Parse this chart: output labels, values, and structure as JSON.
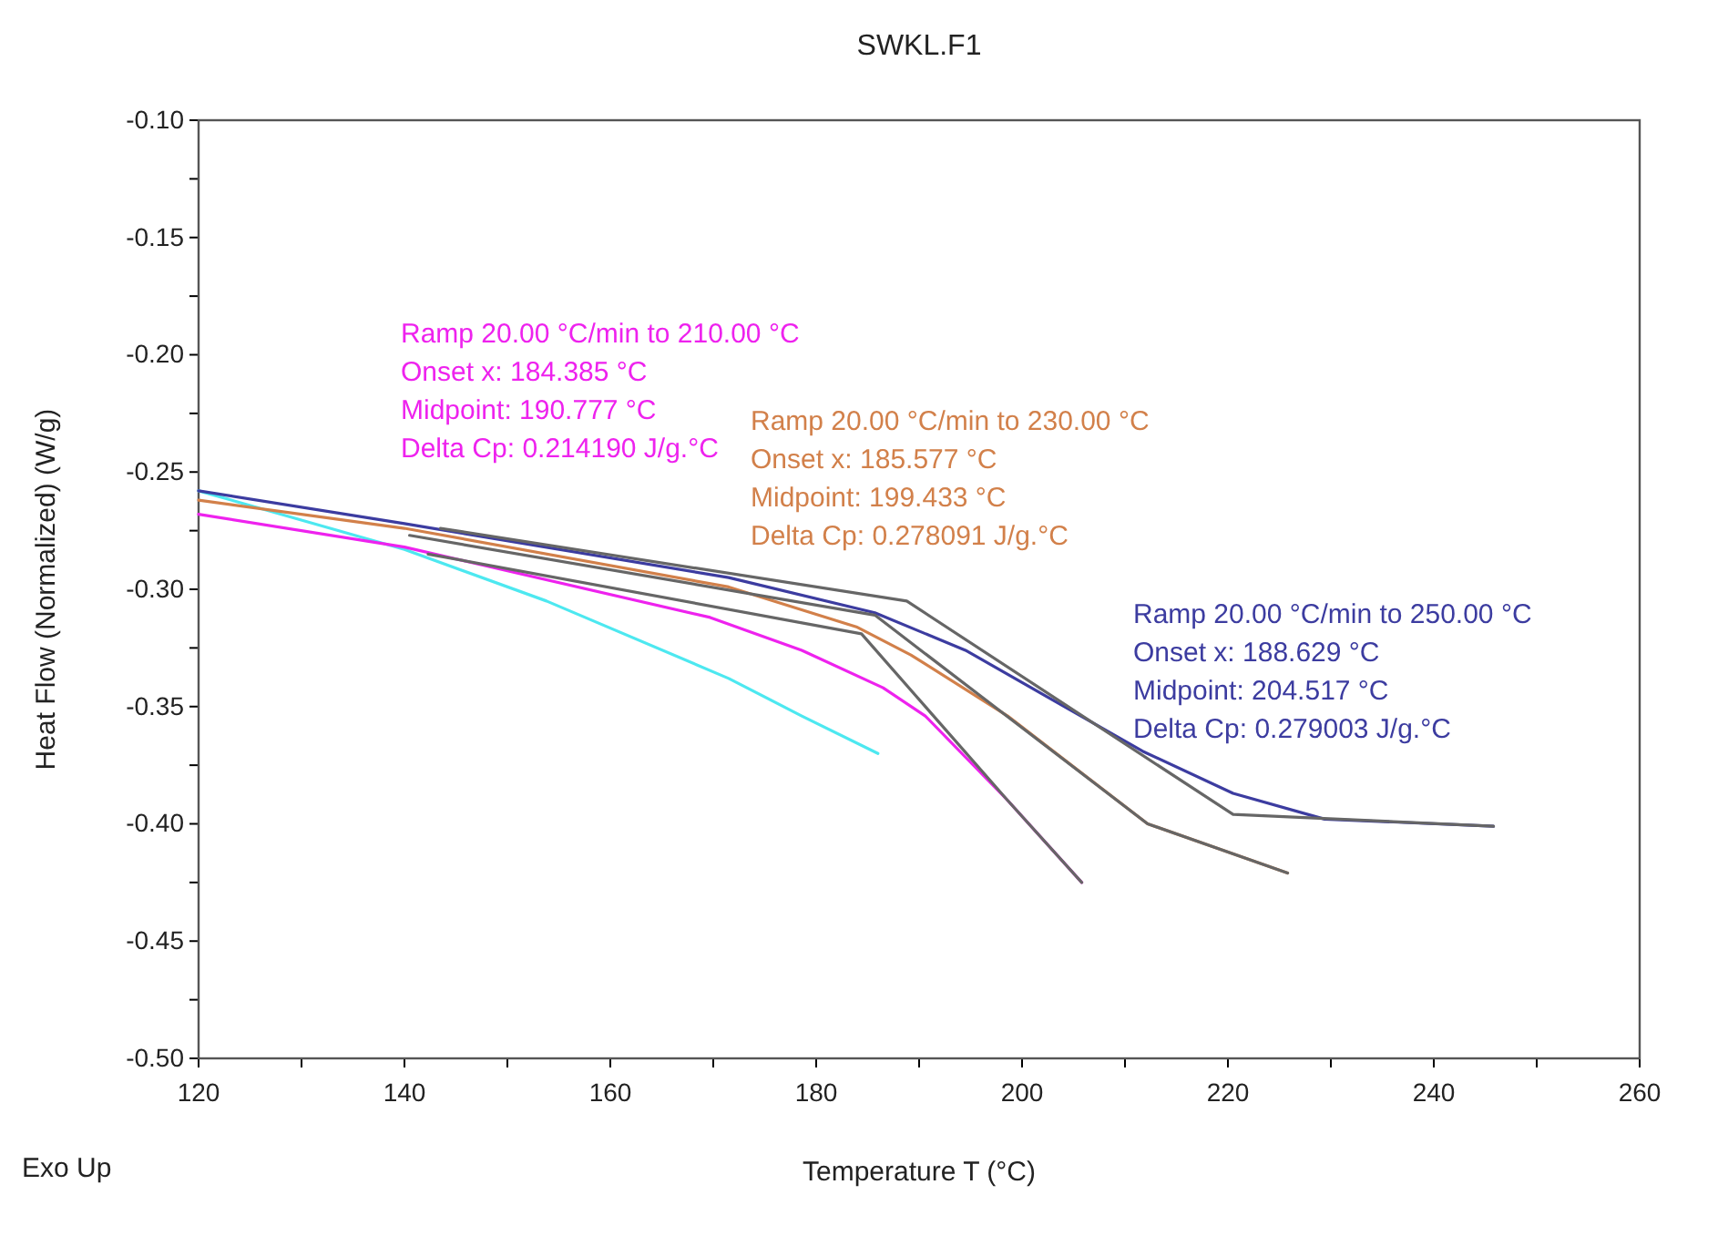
{
  "chart_data": {
    "type": "line",
    "title": "SWKL.F1",
    "xlabel": "Temperature T (°C)",
    "ylabel": "Heat Flow (Normalized) (W/g)",
    "xlim": [
      120,
      260
    ],
    "xticks": [
      120,
      {
        "value": 130,
        "label": null
      },
      140,
      {
        "value": 150,
        "label": null
      },
      160,
      {
        "value": 170,
        "label": null
      },
      180,
      {
        "value": 190,
        "label": null
      },
      200,
      {
        "value": 210,
        "label": null
      },
      220,
      {
        "value": 230,
        "label": null
      },
      240,
      {
        "value": 250,
        "label": null
      },
      260
    ],
    "ylim": [
      -0.5,
      -0.1
    ],
    "yticks": [
      {
        "value": -0.5,
        "label": "-0.50"
      },
      {
        "value": -0.475,
        "label": null
      },
      {
        "value": -0.45,
        "label": "-0.45"
      },
      {
        "value": -0.425,
        "label": null
      },
      {
        "value": -0.4,
        "label": "-0.40"
      },
      {
        "value": -0.375,
        "label": null
      },
      {
        "value": -0.35,
        "label": "-0.35"
      },
      {
        "value": -0.325,
        "label": null
      },
      {
        "value": -0.3,
        "label": "-0.30"
      },
      {
        "value": -0.275,
        "label": null
      },
      {
        "value": -0.25,
        "label": "-0.25"
      },
      {
        "value": -0.225,
        "label": null
      },
      {
        "value": -0.2,
        "label": "-0.20"
      },
      {
        "value": -0.175,
        "label": null
      },
      {
        "value": -0.15,
        "label": "-0.15"
      },
      {
        "value": -0.125,
        "label": null
      },
      {
        "value": -0.1,
        "label": "-0.10"
      }
    ],
    "grid": false,
    "marker": "none",
    "line_style": "solid",
    "series": [
      {
        "color": "#4de8f0",
        "x": [
          120,
          140,
          153.8,
          171.5,
          178.6,
          186.0
        ],
        "values": [
          -0.258,
          -0.283,
          -0.305,
          -0.338,
          -0.354,
          -0.37
        ]
      },
      {
        "color": "#ee22ee",
        "x": [
          120,
          140,
          169.7,
          178.6,
          186.5,
          190.6,
          198.6,
          205.8
        ],
        "values": [
          -0.268,
          -0.282,
          -0.312,
          -0.326,
          -0.342,
          -0.354,
          -0.39,
          -0.425
        ]
      },
      {
        "color": "#d2804a",
        "x": [
          120,
          140,
          171.5,
          183.9,
          189.2,
          198.6,
          212.2,
          225.8
        ],
        "values": [
          -0.262,
          -0.274,
          -0.299,
          -0.316,
          -0.328,
          -0.354,
          -0.4,
          -0.421
        ]
      },
      {
        "color": "#3c3ca0",
        "x": [
          120,
          140,
          171.5,
          185.7,
          194.5,
          211.7,
          220.5,
          229.4,
          245.8
        ],
        "values": [
          -0.258,
          -0.272,
          -0.295,
          -0.31,
          -0.326,
          -0.369,
          -0.387,
          -0.398,
          -0.401
        ]
      },
      {
        "color": "#666666",
        "x": [
          143.5,
          188.8,
          220.5,
          245.8
        ],
        "values": [
          -0.274,
          -0.305,
          -0.396,
          -0.401
        ]
      },
      {
        "color": "#666666",
        "x": [
          140.5,
          185.7,
          212.2,
          225.8
        ],
        "values": [
          -0.277,
          -0.311,
          -0.4,
          -0.421
        ]
      },
      {
        "color": "#666666",
        "x": [
          142.3,
          184.4,
          198.6,
          205.8
        ],
        "values": [
          -0.285,
          -0.319,
          -0.39,
          -0.425
        ]
      }
    ],
    "annotations": [
      "Ramp 20.00 °C/min to 210.00 °C\nOnset x: 184.385 °C\nMidpoint: 190.777 °C\nDelta Cp: 0.214190 J/g.°C",
      "Ramp 20.00 °C/min to 230.00 °C\nOnset x: 185.577 °C\nMidpoint: 199.433 °C\nDelta Cp: 0.278091 J/g.°C",
      "Ramp 20.00 °C/min to 250.00 °C\nOnset x: 188.629 °C\nMidpoint: 204.517 °C\nDelta Cp: 0.279003 J/g.°C",
      "Exo Up"
    ]
  }
}
